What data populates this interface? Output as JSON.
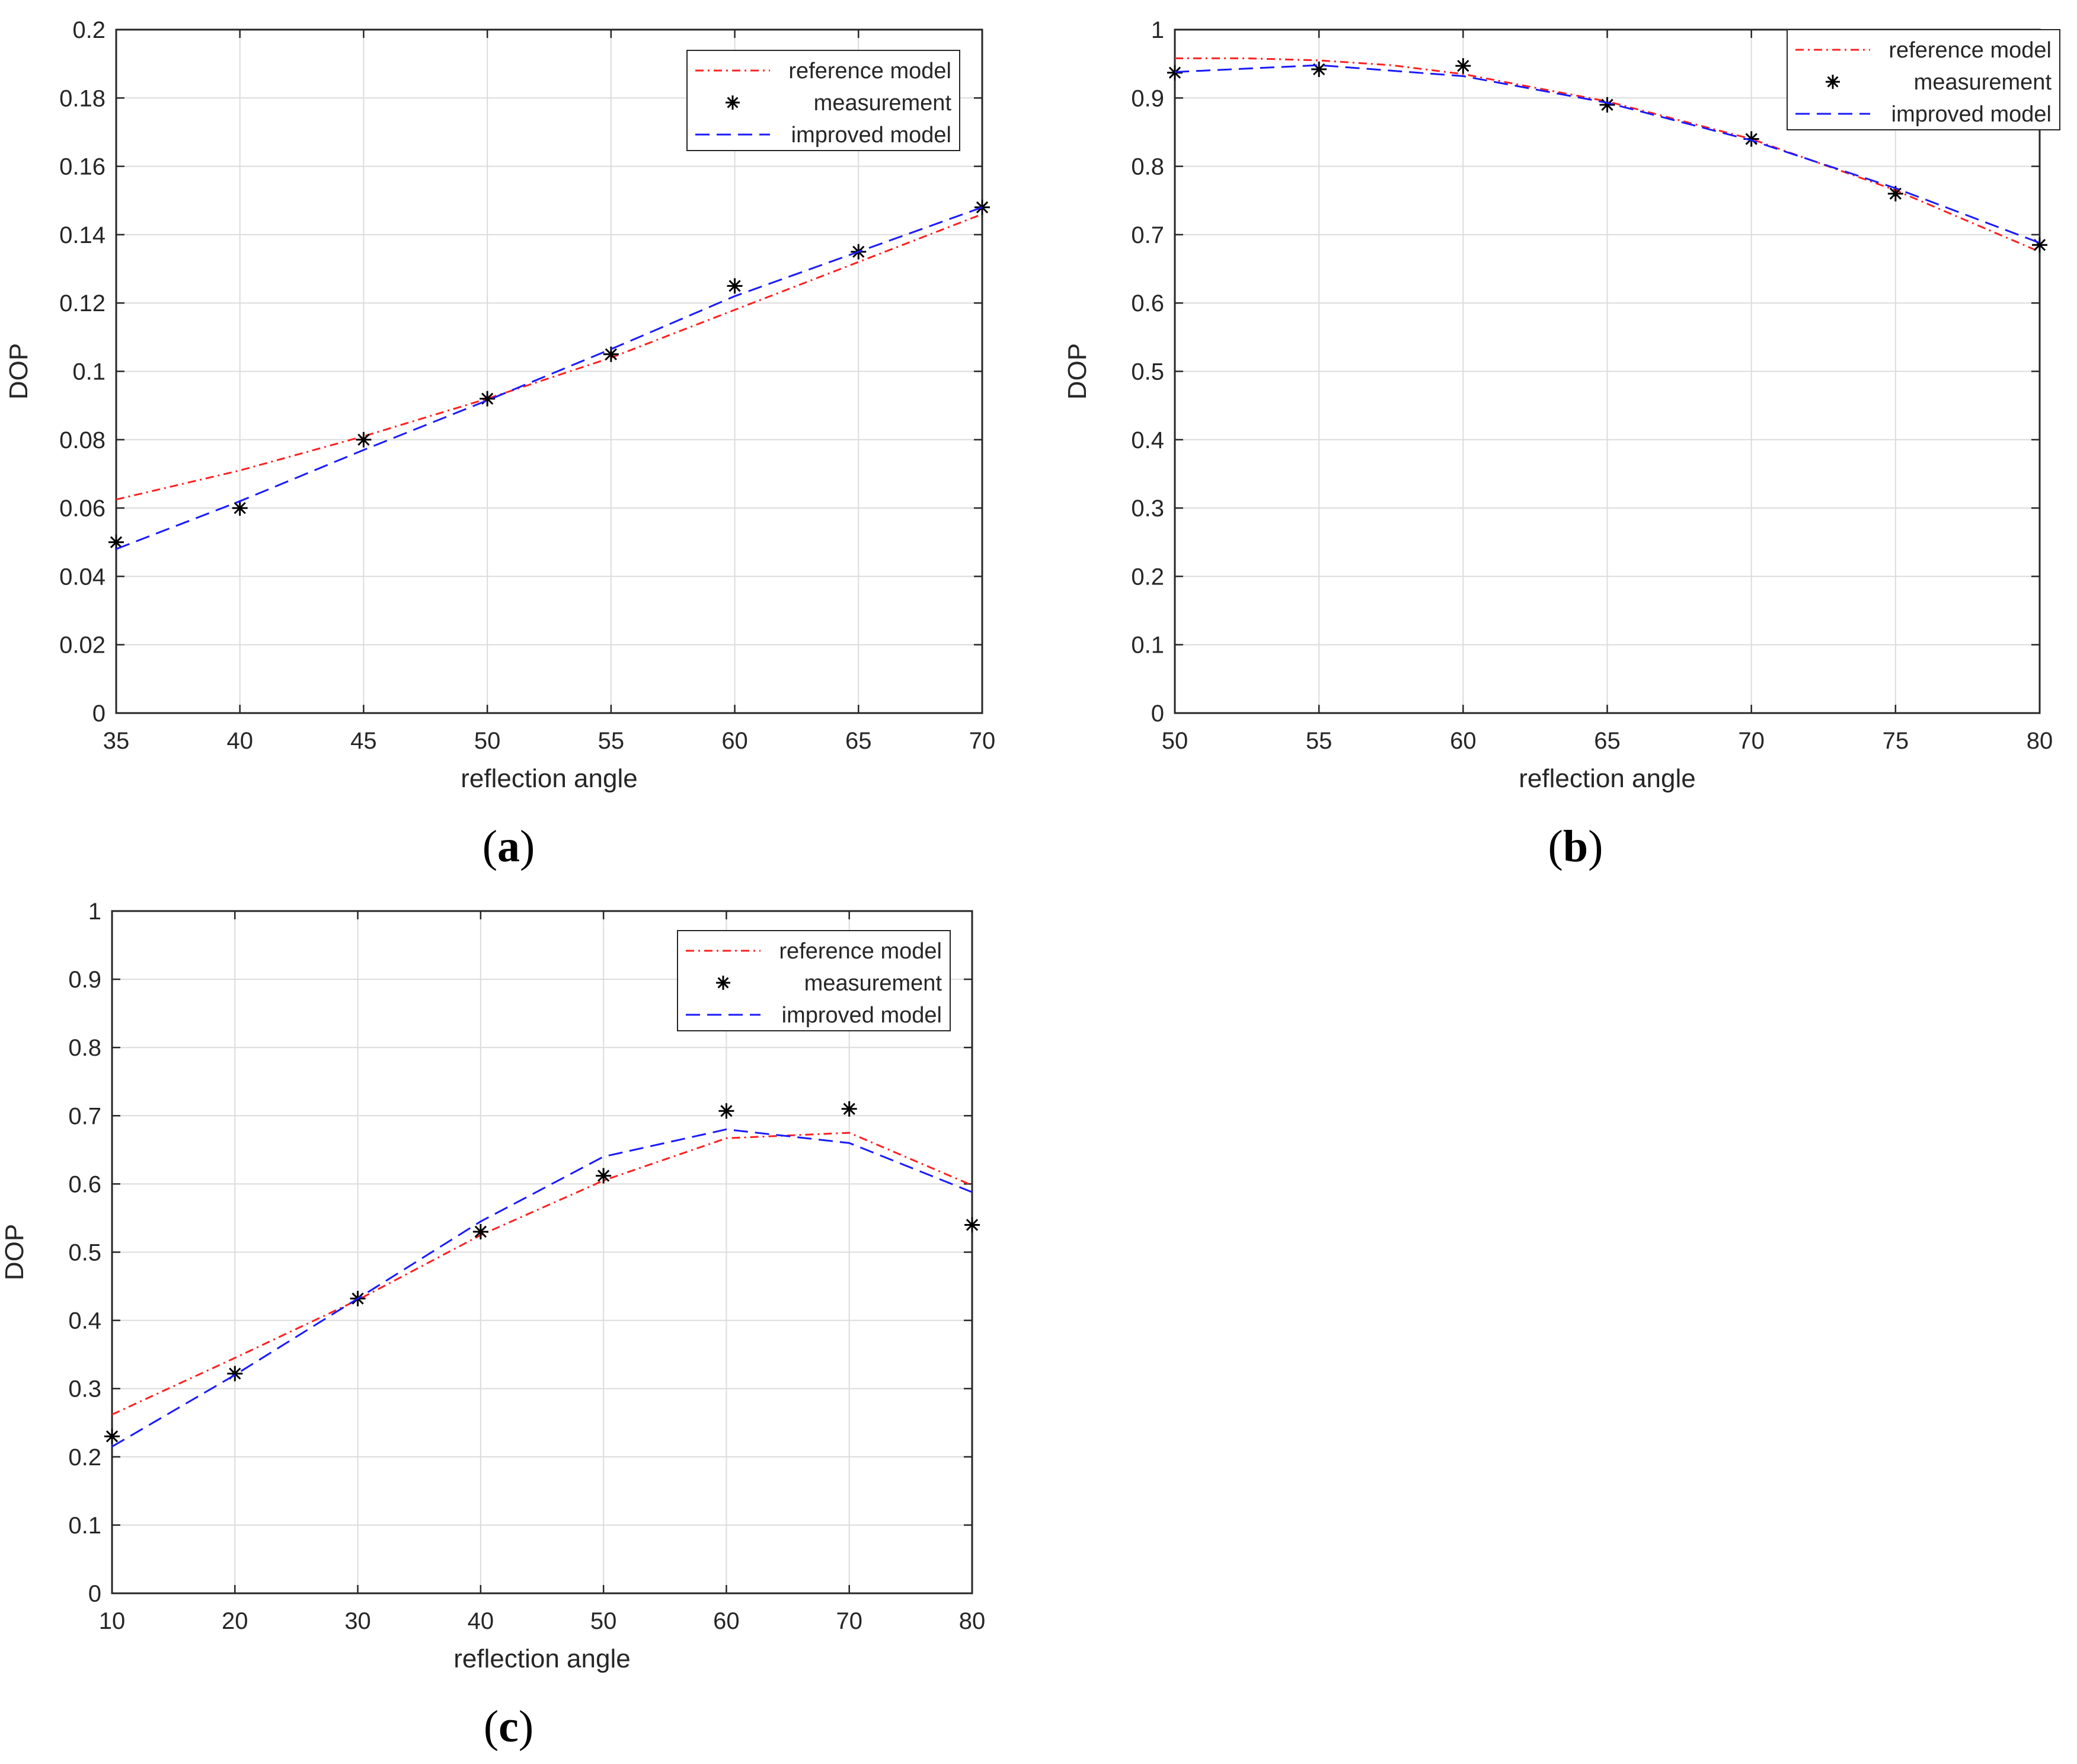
{
  "figure": {
    "panels": [
      {
        "paren_open": "(",
        "letter": "a",
        "paren_close": ")"
      },
      {
        "paren_open": "(",
        "letter": "b",
        "paren_close": ")"
      },
      {
        "paren_open": "(",
        "letter": "c",
        "paren_close": ")"
      }
    ]
  },
  "colors": {
    "reference": "#ff2020",
    "measurement": "#000000",
    "improved": "#1a1aff",
    "grid": "#dcdcdc",
    "axis": "#262626",
    "text": "#262626"
  },
  "chart_data": [
    {
      "type": "line",
      "panel": "a",
      "xlabel": "reflection angle",
      "ylabel": "DOP",
      "xlim": [
        35,
        70
      ],
      "ylim": [
        0,
        0.2
      ],
      "xticks": [
        35,
        40,
        45,
        50,
        55,
        60,
        65,
        70
      ],
      "yticks": [
        0,
        0.02,
        0.04,
        0.06,
        0.08,
        0.1,
        0.12,
        0.14,
        0.16,
        0.18,
        0.2
      ],
      "xtick_labels": [
        "35",
        "40",
        "45",
        "50",
        "55",
        "60",
        "65",
        "70"
      ],
      "ytick_labels": [
        "0",
        "0.02",
        "0.04",
        "0.06",
        "0.08",
        "0.1",
        "0.12",
        "0.14",
        "0.16",
        "0.18",
        "0.2"
      ],
      "grid": true,
      "legend": {
        "position": "top-right",
        "entries": [
          "reference model",
          "measurement",
          "improved model"
        ]
      },
      "series": [
        {
          "name": "reference model",
          "style": "dash-dot",
          "x": [
            35,
            40,
            45,
            50,
            55,
            60,
            65,
            70
          ],
          "values": [
            0.0625,
            0.071,
            0.081,
            0.092,
            0.104,
            0.118,
            0.132,
            0.146
          ]
        },
        {
          "name": "measurement",
          "style": "marker",
          "x": [
            35,
            40,
            45,
            50,
            55,
            60,
            65,
            70
          ],
          "values": [
            0.05,
            0.06,
            0.08,
            0.092,
            0.105,
            0.125,
            0.135,
            0.148
          ]
        },
        {
          "name": "improved model",
          "style": "dashed",
          "x": [
            35,
            40,
            45,
            50,
            55,
            60,
            65,
            70
          ],
          "values": [
            0.048,
            0.062,
            0.077,
            0.0915,
            0.1065,
            0.122,
            0.135,
            0.148
          ]
        }
      ]
    },
    {
      "type": "line",
      "panel": "b",
      "xlabel": "reflection angle",
      "ylabel": "DOP",
      "xlim": [
        50,
        80
      ],
      "ylim": [
        0,
        1
      ],
      "xticks": [
        50,
        55,
        60,
        65,
        70,
        75,
        80
      ],
      "yticks": [
        0,
        0.1,
        0.2,
        0.3,
        0.4,
        0.5,
        0.6,
        0.7,
        0.8,
        0.9,
        1
      ],
      "xtick_labels": [
        "50",
        "55",
        "60",
        "65",
        "70",
        "75",
        "80"
      ],
      "ytick_labels": [
        "0",
        "0.1",
        "0.2",
        "0.3",
        "0.4",
        "0.5",
        "0.6",
        "0.7",
        "0.8",
        "0.9",
        "1"
      ],
      "grid": true,
      "legend": {
        "position": "top-right",
        "entries": [
          "reference model",
          "measurement",
          "improved model"
        ]
      },
      "series": [
        {
          "name": "reference model",
          "style": "dash-dot",
          "x": [
            50,
            52.5,
            55,
            57.5,
            60,
            65,
            70,
            75,
            80
          ],
          "values": [
            0.958,
            0.958,
            0.955,
            0.948,
            0.935,
            0.895,
            0.84,
            0.765,
            0.675
          ]
        },
        {
          "name": "measurement",
          "style": "marker",
          "x": [
            50,
            55,
            60,
            65,
            70,
            75,
            80
          ],
          "values": [
            0.937,
            0.942,
            0.947,
            0.89,
            0.84,
            0.76,
            0.685
          ]
        },
        {
          "name": "improved model",
          "style": "dashed",
          "x": [
            50,
            55,
            60,
            65,
            70,
            75,
            80
          ],
          "values": [
            0.938,
            0.948,
            0.932,
            0.893,
            0.838,
            0.768,
            0.688
          ]
        }
      ]
    },
    {
      "type": "line",
      "panel": "c",
      "xlabel": "reflection angle",
      "ylabel": "DOP",
      "xlim": [
        10,
        80
      ],
      "ylim": [
        0,
        1
      ],
      "xticks": [
        10,
        20,
        30,
        40,
        50,
        60,
        70,
        80
      ],
      "yticks": [
        0,
        0.1,
        0.2,
        0.3,
        0.4,
        0.5,
        0.6,
        0.7,
        0.8,
        0.9,
        1
      ],
      "xtick_labels": [
        "10",
        "20",
        "30",
        "40",
        "50",
        "60",
        "70",
        "80"
      ],
      "ytick_labels": [
        "0",
        "0.1",
        "0.2",
        "0.3",
        "0.4",
        "0.5",
        "0.6",
        "0.7",
        "0.8",
        "0.9",
        "1"
      ],
      "grid": true,
      "legend": {
        "position": "top-right",
        "entries": [
          "reference model",
          "measurement",
          "improved model"
        ]
      },
      "series": [
        {
          "name": "reference model",
          "style": "dash-dot",
          "x": [
            10,
            20,
            30,
            40,
            50,
            60,
            70,
            80
          ],
          "values": [
            0.262,
            0.345,
            0.43,
            0.525,
            0.605,
            0.667,
            0.675,
            0.598
          ]
        },
        {
          "name": "measurement",
          "style": "marker",
          "x": [
            10,
            20,
            30,
            40,
            50,
            60,
            70,
            80
          ],
          "values": [
            0.23,
            0.322,
            0.432,
            0.53,
            0.612,
            0.707,
            0.71,
            0.54
          ]
        },
        {
          "name": "improved model",
          "style": "dashed",
          "x": [
            10,
            20,
            30,
            40,
            50,
            60,
            70,
            80
          ],
          "values": [
            0.215,
            0.32,
            0.432,
            0.545,
            0.64,
            0.68,
            0.66,
            0.588
          ]
        }
      ]
    }
  ]
}
